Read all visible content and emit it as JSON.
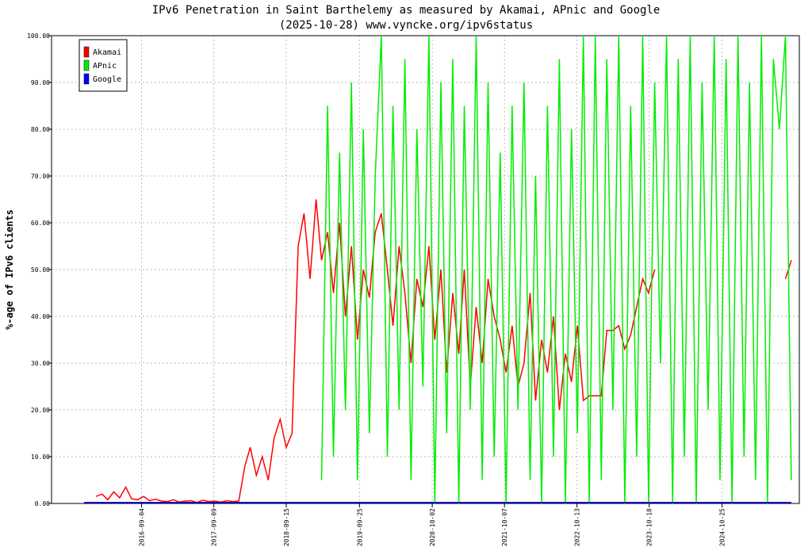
{
  "chart_data": {
    "type": "line",
    "title": "IPv6 Penetration in Saint Barthelemy as measured by Akamai, APnic and Google",
    "subtitle": "(2025-10-28) www.vyncke.org/ipv6status",
    "y_label": "%-age of IPv6 clients",
    "xlim": [
      "2015-06-01",
      "2025-11-25"
    ],
    "xticks": [
      "2016-09-04",
      "2017-09-09",
      "2018-09-15",
      "2019-09-25",
      "2020-10-02",
      "2021-10-07",
      "2022-10-13",
      "2023-10-18",
      "2024-10-25"
    ],
    "ylim": [
      0,
      100
    ],
    "yticks": [
      {
        "value": 0,
        "label": "0.00"
      },
      {
        "value": 10,
        "label": "10.00"
      },
      {
        "value": 20,
        "label": "20.00"
      },
      {
        "value": 30,
        "label": "30.00"
      },
      {
        "value": 40,
        "label": "40.00"
      },
      {
        "value": 50,
        "label": "50.00"
      },
      {
        "value": 60,
        "label": "60.00"
      },
      {
        "value": 70,
        "label": "70.00"
      },
      {
        "value": 80,
        "label": "80.00"
      },
      {
        "value": 90,
        "label": "90.00"
      },
      {
        "value": 100,
        "label": "100.00"
      }
    ],
    "grid": true,
    "legend": "upper left",
    "x": [
      "2015-11-15",
      "2015-12-15",
      "2016-01-15",
      "2016-02-15",
      "2016-03-15",
      "2016-04-15",
      "2016-05-15",
      "2016-06-15",
      "2016-07-15",
      "2016-08-15",
      "2016-09-15",
      "2016-10-15",
      "2016-11-15",
      "2016-12-15",
      "2017-01-15",
      "2017-02-15",
      "2017-03-15",
      "2017-04-15",
      "2017-05-15",
      "2017-06-15",
      "2017-07-15",
      "2017-08-15",
      "2017-09-15",
      "2017-10-15",
      "2017-11-15",
      "2017-12-15",
      "2018-01-15",
      "2018-02-15",
      "2018-03-15",
      "2018-04-15",
      "2018-05-15",
      "2018-06-15",
      "2018-07-15",
      "2018-08-15",
      "2018-09-15",
      "2018-10-15",
      "2018-11-15",
      "2018-12-15",
      "2019-01-15",
      "2019-02-15",
      "2019-03-15",
      "2019-04-15",
      "2019-05-15",
      "2019-06-15",
      "2019-07-15",
      "2019-08-15",
      "2019-09-15",
      "2019-10-15",
      "2019-11-15",
      "2019-12-15",
      "2020-01-15",
      "2020-02-15",
      "2020-03-15",
      "2020-04-15",
      "2020-05-15",
      "2020-06-15",
      "2020-07-15",
      "2020-08-15",
      "2020-09-15",
      "2020-10-15",
      "2020-11-15",
      "2020-12-15",
      "2021-01-15",
      "2021-02-15",
      "2021-03-15",
      "2021-04-15",
      "2021-05-15",
      "2021-06-15",
      "2021-07-15",
      "2021-08-15",
      "2021-09-15",
      "2021-10-15",
      "2021-11-15",
      "2021-12-15",
      "2022-01-15",
      "2022-02-15",
      "2022-03-15",
      "2022-04-15",
      "2022-05-15",
      "2022-06-15",
      "2022-07-15",
      "2022-08-15",
      "2022-09-15",
      "2022-10-15",
      "2022-11-15",
      "2022-12-15",
      "2023-01-15",
      "2023-02-15",
      "2023-03-15",
      "2023-04-15",
      "2023-05-15",
      "2023-06-15",
      "2023-07-15",
      "2023-08-15",
      "2023-09-15",
      "2023-10-15",
      "2023-11-15",
      "2023-12-15",
      "2024-01-15",
      "2024-02-15",
      "2024-03-15",
      "2024-04-15",
      "2024-05-15",
      "2024-06-15",
      "2024-07-15",
      "2024-08-15",
      "2024-09-15",
      "2024-10-15",
      "2024-11-15",
      "2024-12-15",
      "2025-01-15",
      "2025-02-15",
      "2025-03-15",
      "2025-04-15",
      "2025-05-15",
      "2025-06-15",
      "2025-07-15",
      "2025-08-15",
      "2025-09-15",
      "2025-10-15"
    ],
    "series": [
      {
        "name": "Akamai",
        "color": "#ff0000",
        "values": [
          null,
          null,
          1.5,
          2.0,
          0.8,
          2.5,
          1.2,
          3.5,
          1.0,
          0.8,
          1.5,
          0.6,
          0.9,
          0.5,
          0.4,
          0.8,
          0.3,
          0.5,
          0.6,
          0.2,
          0.7,
          0.4,
          0.5,
          0.3,
          0.6,
          0.4,
          0.5,
          8,
          12,
          6,
          10,
          5,
          14,
          18,
          12,
          15,
          55,
          62,
          48,
          65,
          52,
          58,
          45,
          60,
          40,
          55,
          35,
          50,
          44,
          58,
          62,
          50,
          38,
          55,
          45,
          30,
          48,
          42,
          55,
          35,
          50,
          28,
          45,
          32,
          50,
          25,
          42,
          30,
          48,
          40,
          35,
          28,
          38,
          25,
          30,
          45,
          22,
          35,
          28,
          40,
          20,
          32,
          26,
          38,
          22,
          23,
          23,
          23,
          37,
          37,
          38,
          33,
          36,
          42,
          48,
          45,
          50,
          null,
          null,
          null,
          null,
          null,
          null,
          null,
          null,
          null,
          null,
          null,
          null,
          null,
          null,
          null,
          null,
          null,
          null,
          null,
          null,
          null,
          48,
          52
        ]
      },
      {
        "name": "APnic",
        "color": "#00ee00",
        "values": [
          null,
          null,
          null,
          null,
          null,
          null,
          null,
          null,
          null,
          null,
          null,
          null,
          null,
          null,
          null,
          null,
          null,
          null,
          null,
          null,
          null,
          null,
          null,
          null,
          null,
          null,
          null,
          null,
          null,
          null,
          null,
          null,
          null,
          null,
          null,
          null,
          null,
          null,
          null,
          null,
          5,
          85,
          10,
          75,
          20,
          90,
          5,
          80,
          15,
          70,
          100,
          10,
          85,
          20,
          95,
          5,
          80,
          25,
          100,
          0,
          90,
          15,
          95,
          0,
          85,
          20,
          100,
          5,
          90,
          10,
          75,
          0,
          85,
          20,
          90,
          5,
          70,
          0,
          85,
          10,
          95,
          0,
          80,
          15,
          100,
          0,
          100,
          5,
          95,
          20,
          100,
          0,
          85,
          10,
          100,
          0,
          90,
          30,
          100,
          0,
          95,
          10,
          100,
          0,
          90,
          20,
          100,
          5,
          95,
          0,
          100,
          10,
          90,
          5,
          100,
          0,
          95,
          80,
          100,
          5
        ]
      },
      {
        "name": "Google",
        "color": "#0000ff",
        "values": [
          0.2,
          0.2,
          0.2,
          0.2,
          0.2,
          0.2,
          0.2,
          0.2,
          0.2,
          0.2,
          0.2,
          0.2,
          0.2,
          0.2,
          0.2,
          0.2,
          0.2,
          0.2,
          0.2,
          0.2,
          0.2,
          0.2,
          0.2,
          0.2,
          0.2,
          0.2,
          0.2,
          0.2,
          0.2,
          0.2,
          0.2,
          0.2,
          0.2,
          0.2,
          0.2,
          0.2,
          0.2,
          0.2,
          0.2,
          0.2,
          0.2,
          0.2,
          0.2,
          0.2,
          0.2,
          0.2,
          0.2,
          0.2,
          0.2,
          0.2,
          0.2,
          0.2,
          0.2,
          0.2,
          0.2,
          0.2,
          0.2,
          0.2,
          0.2,
          0.2,
          0.2,
          0.2,
          0.2,
          0.2,
          0.2,
          0.2,
          0.2,
          0.2,
          0.2,
          0.2,
          0.2,
          0.2,
          0.2,
          0.2,
          0.2,
          0.2,
          0.2,
          0.2,
          0.2,
          0.2,
          0.2,
          0.2,
          0.2,
          0.2,
          0.2,
          0.2,
          0.2,
          0.2,
          0.2,
          0.2,
          0.2,
          0.2,
          0.2,
          0.2,
          0.2,
          0.2,
          0.2,
          0.2,
          0.2,
          0.2,
          0.2,
          0.2,
          0.2,
          0.2,
          0.2,
          0.2,
          0.2,
          0.2,
          0.2,
          0.2,
          0.2,
          0.2,
          0.2,
          0.2,
          0.2,
          0.2,
          0.2,
          0.2,
          0.2,
          0.2
        ]
      }
    ]
  }
}
